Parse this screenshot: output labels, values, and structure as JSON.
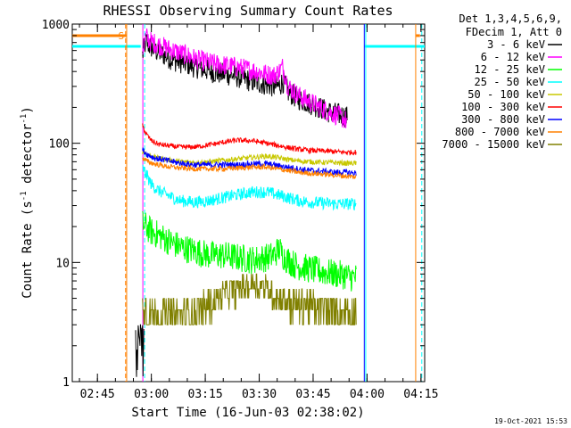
{
  "chart_data": {
    "type": "line",
    "title": "RHESSI Observing Summary Count Rates",
    "xlabel": "Start Time (16-Jun-03 02:38:02)",
    "ylabel_main": "Count Rate (s",
    "ylabel_sup1": "-1",
    "ylabel_mid": " detector",
    "ylabel_sup2": "-1",
    "ylabel_end": ")",
    "yscale": "log",
    "ylim": [
      1,
      1000
    ],
    "xlim_minutes": [
      -0.03,
      98.0
    ],
    "x_ticks": [
      {
        "label": "02:45",
        "minutes": 6.97
      },
      {
        "label": "03:00",
        "minutes": 21.97
      },
      {
        "label": "03:15",
        "minutes": 36.97
      },
      {
        "label": "03:30",
        "minutes": 51.97
      },
      {
        "label": "03:45",
        "minutes": 66.97
      },
      {
        "label": "04:00",
        "minutes": 81.97
      },
      {
        "label": "04:15",
        "minutes": 96.97
      }
    ],
    "y_ticks": [
      {
        "label": "1",
        "value": 1
      },
      {
        "label": "10",
        "value": 10
      },
      {
        "label": "100",
        "value": 100
      },
      {
        "label": "1000",
        "value": 1000
      }
    ],
    "legend_header": [
      "Det 1,3,4,5,6,9,",
      "FDecim 1, Att 0"
    ],
    "series": [
      {
        "name": "3 - 6 keV",
        "color": "#000000",
        "x": [
          19.5,
          20.5,
          21.5,
          23,
          25,
          28,
          31,
          35,
          40,
          45,
          50,
          54,
          56,
          57.5,
          58.5,
          60,
          63,
          67,
          71,
          74,
          75.5,
          76.5
        ],
        "y": [
          550,
          720,
          650,
          600,
          560,
          500,
          470,
          430,
          390,
          370,
          330,
          310,
          300,
          300,
          330,
          270,
          235,
          210,
          185,
          175,
          170,
          165
        ]
      },
      {
        "name": "6 - 12 keV",
        "color": "#ff00ff",
        "x": [
          19.6,
          20.5,
          21.5,
          23,
          25,
          28,
          31,
          35,
          40,
          45,
          50,
          54,
          56,
          57.5,
          58.5,
          60,
          63,
          67,
          71,
          74,
          75.5,
          76.5
        ],
        "y": [
          620,
          790,
          720,
          690,
          650,
          600,
          560,
          500,
          460,
          440,
          410,
          380,
          370,
          400,
          440,
          300,
          250,
          215,
          185,
          170,
          160,
          150
        ]
      },
      {
        "name": "12 - 25 keV",
        "color": "#00ff00",
        "x": [
          19.5,
          20.5,
          22,
          24,
          27,
          30,
          34,
          38,
          42,
          46,
          50,
          54,
          56,
          57.5,
          59,
          62,
          66,
          70,
          73,
          76,
          77.5,
          79
        ],
        "y": [
          21,
          20,
          18,
          17,
          15,
          13.5,
          12.5,
          11.5,
          11.5,
          11,
          10.5,
          11,
          11.5,
          13,
          11,
          9.5,
          8.8,
          8.3,
          8,
          7.8,
          7.5,
          7.5
        ]
      },
      {
        "name": "25 - 50 keV",
        "color": "#00ffff",
        "x": [
          19.5,
          20.5,
          22,
          24,
          27,
          30,
          34,
          38,
          42,
          46,
          50,
          54,
          57,
          60,
          63,
          66,
          70,
          73,
          76,
          79
        ],
        "y": [
          62,
          55,
          45,
          40,
          36,
          33,
          32,
          33,
          35,
          37,
          39,
          39,
          37,
          35,
          33,
          32,
          31.5,
          31,
          31,
          31
        ]
      },
      {
        "name": "50 - 100 keV",
        "color": "#c8c800",
        "x": [
          19.5,
          21,
          23,
          26,
          30,
          34,
          38,
          42,
          46,
          50,
          54,
          57,
          60,
          63,
          66,
          70,
          73,
          76,
          79
        ],
        "y": [
          85,
          80,
          76,
          73,
          70,
          69,
          70,
          72,
          74,
          76,
          78,
          76,
          73,
          71,
          70,
          69,
          69,
          68,
          68
        ]
      },
      {
        "name": "100 - 300 keV",
        "color": "#ff0000",
        "x": [
          19.5,
          20.5,
          22,
          24,
          27,
          30,
          34,
          38,
          42,
          46,
          50,
          54,
          57,
          60,
          63,
          66,
          70,
          73,
          76,
          79
        ],
        "y": [
          140,
          120,
          105,
          98,
          95,
          93,
          93,
          97,
          102,
          106,
          105,
          100,
          96,
          92,
          89,
          87,
          86,
          85,
          84,
          84
        ]
      },
      {
        "name": "300 - 800 keV",
        "color": "#0000ff",
        "x": [
          19.5,
          21,
          23,
          26,
          30,
          34,
          38,
          42,
          46,
          50,
          54,
          57,
          60,
          63,
          66,
          70,
          73,
          76,
          79
        ],
        "y": [
          88,
          80,
          75,
          72,
          68,
          66,
          66,
          66,
          66,
          67,
          67,
          65,
          63,
          61,
          59,
          58,
          57,
          57,
          56
        ]
      },
      {
        "name": "800 - 7000 keV",
        "color": "#ff8000",
        "x": [
          19.5,
          21,
          23,
          26,
          30,
          34,
          38,
          42,
          46,
          50,
          54,
          57,
          60,
          63,
          66,
          70,
          73,
          76,
          79
        ],
        "y": [
          75,
          70,
          67,
          64,
          62,
          61,
          61,
          61,
          62,
          63,
          63,
          61,
          59,
          57,
          56,
          55,
          54,
          53,
          52
        ]
      },
      {
        "name": "7000 - 15000 keV",
        "color": "#808000",
        "x": [
          19.5,
          20.5,
          22,
          24,
          27,
          30,
          34,
          38,
          42,
          46,
          50,
          53,
          56,
          59,
          62,
          66,
          70,
          73,
          76,
          79
        ],
        "y": [
          5,
          4,
          3.5,
          3.5,
          3.5,
          3.5,
          4,
          4.5,
          5.5,
          6,
          6.5,
          6.5,
          5.5,
          5,
          4.5,
          4.5,
          4,
          4,
          4,
          4
        ]
      }
    ],
    "markers": {
      "night_level": 650,
      "night_color": "#00ffff",
      "night_intervals": [
        [
          -0.03,
          19.0
        ],
        [
          81.3,
          98.0
        ]
      ],
      "saa_level": 800,
      "saa_color": "#ff8000",
      "saa_intervals": [
        [
          -0.03,
          15.0
        ],
        [
          95.6,
          96.7
        ]
      ],
      "saa_label": "S",
      "vlines": [
        {
          "x": 14.8,
          "color": "#ff8000",
          "dashed": true
        },
        {
          "x": 15.1,
          "color": "#ff8000",
          "dashed": false
        },
        {
          "x": 19.6,
          "color": "#ff00ff",
          "dashed": false
        },
        {
          "x": 20.1,
          "color": "#00ffff",
          "dashed": true
        },
        {
          "x": 81.2,
          "color": "#0000ff",
          "dashed": false
        },
        {
          "x": 81.6,
          "color": "#00ffff",
          "dashed": false
        },
        {
          "x": 95.5,
          "color": "#ff8000",
          "dashed": false
        },
        {
          "x": 97.2,
          "color": "#00ffff",
          "dashed": true
        }
      ]
    },
    "timestamp": "19-Oct-2021 15:53"
  }
}
